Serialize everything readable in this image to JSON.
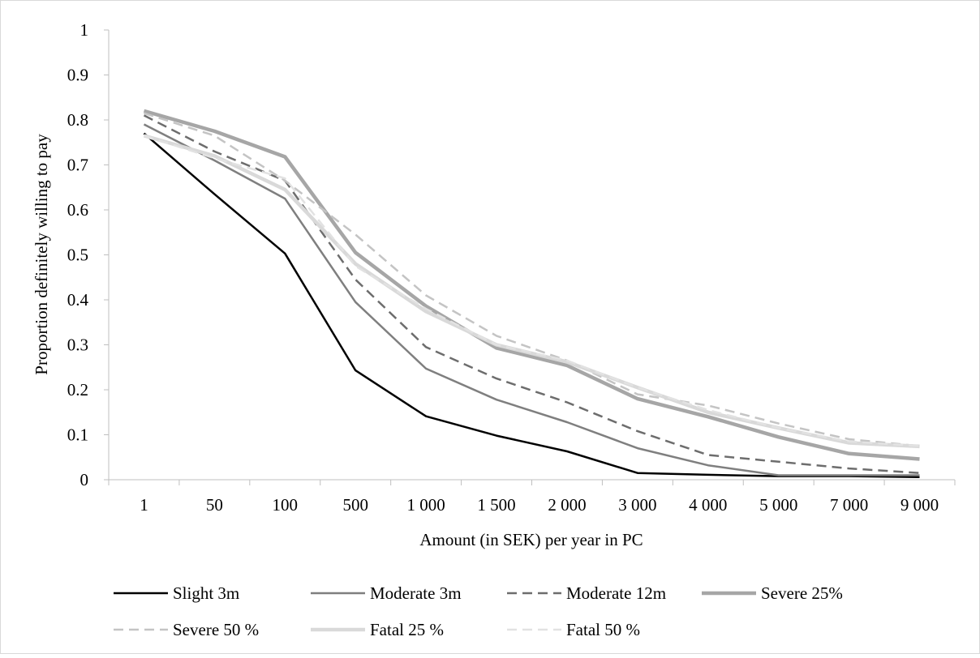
{
  "chart_data": {
    "type": "line",
    "title": "",
    "xlabel": "Amount (in SEK) per year in PC",
    "ylabel": "Proportion definitely willing to pay",
    "categories": [
      "1",
      "50",
      "100",
      "500",
      "1 000",
      "1 500",
      "2 000",
      "3 000",
      "4 000",
      "5 000",
      "7 000",
      "9 000"
    ],
    "ylim": [
      0,
      1
    ],
    "yticks": [
      "0",
      "0.1",
      "0.2",
      "0.3",
      "0.4",
      "0.5",
      "0.6",
      "0.7",
      "0.8",
      "0.9",
      "1"
    ],
    "grid": false,
    "legend_position": "bottom",
    "series": [
      {
        "name": "Slight 3m",
        "color": "#000000",
        "dash": "solid",
        "width": "thin",
        "values": [
          0.77,
          0.635,
          0.503,
          0.243,
          0.141,
          0.098,
          0.063,
          0.015,
          0.011,
          0.008,
          0.008,
          0.006
        ]
      },
      {
        "name": "Moderate 3m",
        "color": "#7f7f7f",
        "dash": "solid",
        "width": "thin",
        "values": [
          0.79,
          0.71,
          0.625,
          0.395,
          0.247,
          0.178,
          0.128,
          0.07,
          0.032,
          0.01,
          0.01,
          0.01
        ]
      },
      {
        "name": "Moderate 12m",
        "color": "#6d6d6d",
        "dash": "dashed",
        "width": "thin",
        "values": [
          0.81,
          0.73,
          0.665,
          0.445,
          0.295,
          0.225,
          0.172,
          0.108,
          0.055,
          0.04,
          0.025,
          0.015
        ]
      },
      {
        "name": "Severe 25%",
        "color": "#a6a6a6",
        "dash": "solid",
        "width": "thick",
        "values": [
          0.82,
          0.775,
          0.718,
          0.505,
          0.386,
          0.293,
          0.254,
          0.18,
          0.14,
          0.095,
          0.058,
          0.046
        ]
      },
      {
        "name": "Severe 50 %",
        "color": "#c4c4c4",
        "dash": "dashed",
        "width": "thin",
        "values": [
          0.815,
          0.765,
          0.665,
          0.545,
          0.41,
          0.32,
          0.265,
          0.19,
          0.165,
          0.125,
          0.09,
          0.075
        ]
      },
      {
        "name": "Fatal 25 %",
        "color": "#d9d9d9",
        "dash": "solid",
        "width": "thick",
        "values": [
          0.765,
          0.72,
          0.645,
          0.48,
          0.374,
          0.3,
          0.262,
          0.205,
          0.15,
          0.115,
          0.082,
          0.074
        ]
      },
      {
        "name": "Fatal 50 %",
        "color": "#e2e2e2",
        "dash": "dashed",
        "width": "thin",
        "values": [
          0.765,
          0.715,
          0.67,
          0.475,
          0.38,
          0.3,
          0.265,
          0.205,
          0.155,
          0.115,
          0.085,
          0.075
        ]
      }
    ]
  }
}
